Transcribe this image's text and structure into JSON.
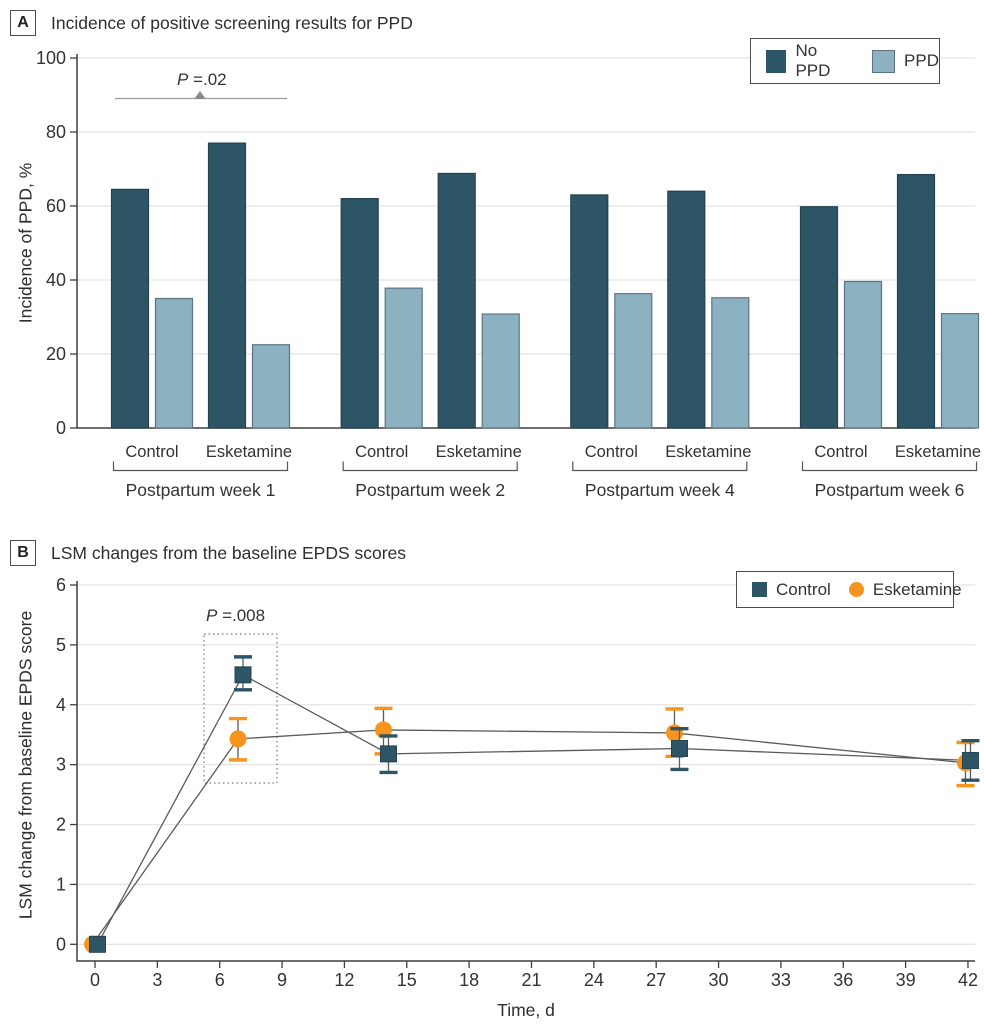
{
  "colors": {
    "dark_teal": "#2D5566",
    "dark_teal_border": "#24434F",
    "light_blue": "#8CB1C1",
    "light_blue_border": "#5C7482",
    "orange": "#F7941E",
    "axis": "#3F3F3F",
    "grid": "#E4E4E4",
    "line": "#5A5A5A",
    "annotation_gray": "#8A8A8A",
    "bracket": "#555555",
    "text": "#333333"
  },
  "panelA": {
    "label": "A",
    "title": "Incidence of positive screening results for PPD",
    "ylabel": "Incidence of PPD, %"
  },
  "panelB": {
    "label": "B",
    "title": "LSM changes from the baseline EPDS scores",
    "ylabel": "LSM change from baseline EPDS score",
    "xlabel": "Time, d"
  },
  "chart_data": [
    {
      "type": "bar",
      "title": "Incidence of positive screening results for PPD",
      "ylabel": "Incidence of PPD, %",
      "ylim": [
        0,
        100
      ],
      "yticks": [
        0,
        20,
        40,
        60,
        80,
        100
      ],
      "grid": true,
      "legend_position": "top-right",
      "groups": [
        "Postpartum week 1",
        "Postpartum week 2",
        "Postpartum week 4",
        "Postpartum week 6"
      ],
      "subgroups": [
        "Control",
        "Esketamine"
      ],
      "series": [
        {
          "name": "No PPD",
          "color": "#2D5566",
          "values": [
            [
              64.5,
              77.0
            ],
            [
              62.0,
              68.8
            ],
            [
              63.0,
              64.0
            ],
            [
              59.8,
              68.5
            ]
          ]
        },
        {
          "name": "PPD",
          "color": "#8CB1C1",
          "values": [
            [
              35.0,
              22.5
            ],
            [
              37.8,
              30.8
            ],
            [
              36.3,
              35.2
            ],
            [
              39.6,
              30.9
            ]
          ]
        }
      ],
      "annotation": {
        "italic": "P",
        "rest": " =.02",
        "applies_to": "Postpartum week 1"
      }
    },
    {
      "type": "line",
      "title": "LSM changes from the baseline EPDS scores",
      "xlabel": "Time, d",
      "ylabel": "LSM change from baseline EPDS score",
      "xlim": [
        0,
        42
      ],
      "ylim": [
        0,
        6
      ],
      "xticks": [
        0,
        3,
        6,
        9,
        12,
        15,
        18,
        21,
        24,
        27,
        30,
        33,
        36,
        39,
        42
      ],
      "yticks": [
        0,
        1,
        2,
        3,
        4,
        5,
        6
      ],
      "grid": true,
      "legend_position": "top-right",
      "x": [
        0,
        7,
        14,
        28,
        42
      ],
      "series": [
        {
          "name": "Control",
          "marker": "square",
          "color": "#2D5566",
          "values": [
            0,
            4.5,
            3.18,
            3.27,
            3.07
          ],
          "err_low": [
            null,
            4.25,
            2.87,
            2.92,
            2.74
          ],
          "err_high": [
            null,
            4.8,
            3.48,
            3.6,
            3.4
          ]
        },
        {
          "name": "Esketamine",
          "marker": "circle",
          "color": "#F7941E",
          "values": [
            0,
            3.43,
            3.58,
            3.53,
            3.03
          ],
          "err_low": [
            null,
            3.08,
            3.18,
            3.14,
            2.65
          ],
          "err_high": [
            null,
            3.77,
            3.94,
            3.93,
            3.37
          ]
        }
      ],
      "annotation": {
        "italic": "P",
        "rest": " =.008",
        "applies_to": "day 7"
      }
    }
  ]
}
